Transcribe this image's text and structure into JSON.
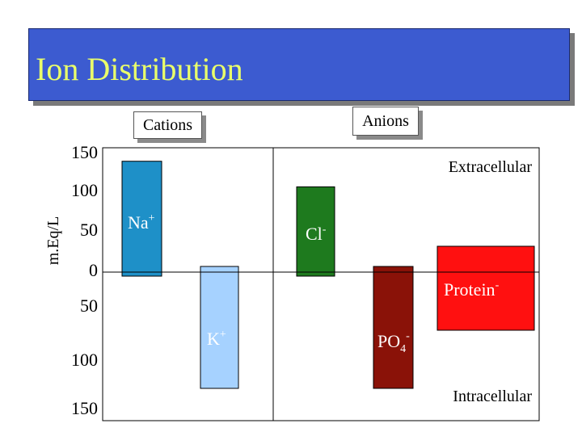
{
  "title": "Ion Distribution",
  "legend": {
    "cations": "Cations",
    "anions": "Anions"
  },
  "colors": {
    "title_bg": "#3c5bd0",
    "title_text": "#eaff6a"
  },
  "chart_data": {
    "type": "bar",
    "ylabel": "m.Eq/L",
    "ylim": [
      -150,
      150
    ],
    "y_ticks": [
      "150",
      "100",
      "50",
      "0",
      "50",
      "100",
      "150"
    ],
    "regions": {
      "top": "Extracellular",
      "bottom": "Intracellular"
    },
    "bars": [
      {
        "label": "Na+",
        "base": "Na",
        "sup": "+",
        "sub": "",
        "group": "Cations",
        "region": "Extracellular",
        "value": 143,
        "color": "#1e90c8",
        "label_color": "#ffffff"
      },
      {
        "label": "K+",
        "base": "K",
        "sup": "+",
        "sub": "",
        "group": "Cations",
        "region": "Intracellular",
        "value": -150,
        "color": "#a6d2ff",
        "label_color": "#ffffff"
      },
      {
        "label": "Cl-",
        "base": "Cl",
        "sup": "-",
        "sub": "",
        "group": "Anions",
        "region": "Extracellular",
        "value": 110,
        "color": "#1e7a1e",
        "label_color": "#ffffff"
      },
      {
        "label": "PO4-",
        "base": "PO",
        "sup": "-",
        "sub": "4",
        "group": "Anions",
        "region": "Intracellular",
        "value": -150,
        "color": "#8a1208",
        "label_color": "#ffffff"
      },
      {
        "label": "Protein-",
        "base": "Protein",
        "sup": "-",
        "sub": "",
        "group": "Anions",
        "region": "Intracellular",
        "value": -75,
        "color": "#ff1010",
        "label_color": "#ffffff"
      }
    ]
  }
}
